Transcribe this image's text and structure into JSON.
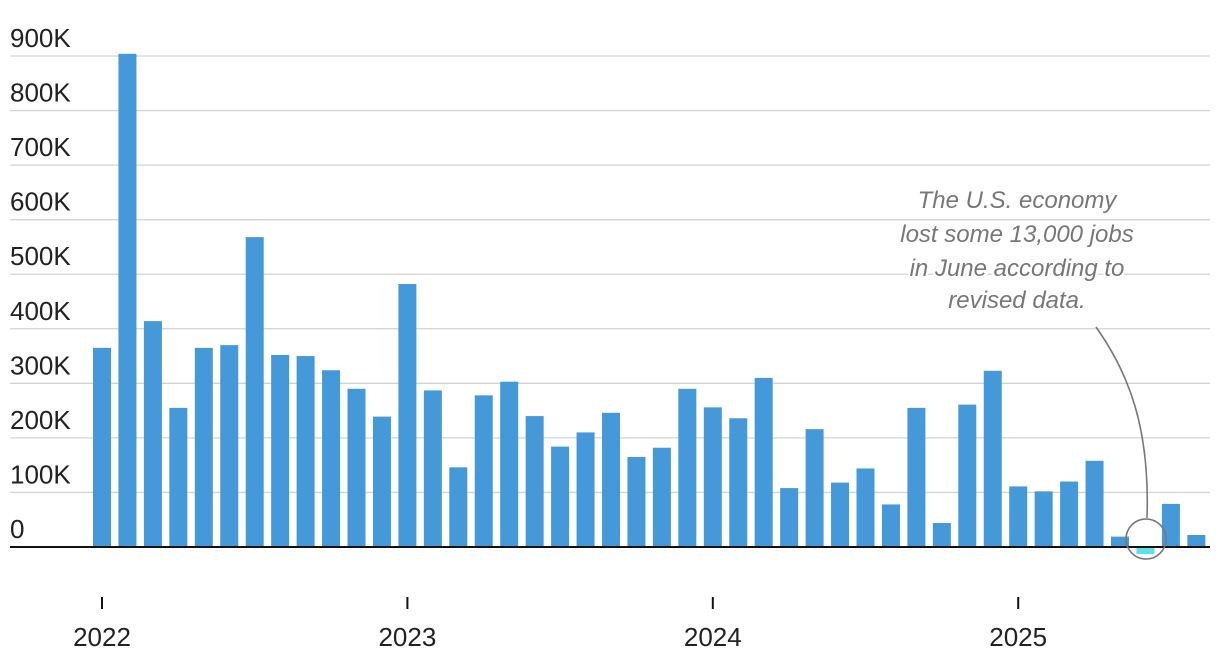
{
  "chart_data": {
    "type": "bar",
    "ylim": [
      -15000,
      900000
    ],
    "yticks": [
      0,
      100000,
      200000,
      300000,
      400000,
      500000,
      600000,
      700000,
      800000,
      900000
    ],
    "ytick_labels": [
      "0",
      "100K",
      "200K",
      "300K",
      "400K",
      "500K",
      "600K",
      "700K",
      "800K",
      "900K"
    ],
    "xtick_labels": [
      "2022",
      "2023",
      "2024",
      "2025"
    ],
    "grid": true,
    "colors": {
      "bar": "#4599d8",
      "highlight": "#5ce1e6",
      "grid": "#d3d3d3",
      "axis": "#111111",
      "annotation": "#777777"
    },
    "annotation": {
      "lines": [
        "The U.S. economy",
        "lost some 13,000 jobs",
        "in June according to",
        "revised data."
      ],
      "points_to": "2025-06"
    },
    "x": [
      "2022-01",
      "2022-02",
      "2022-03",
      "2022-04",
      "2022-05",
      "2022-06",
      "2022-07",
      "2022-08",
      "2022-09",
      "2022-10",
      "2022-11",
      "2022-12",
      "2023-01",
      "2023-02",
      "2023-03",
      "2023-04",
      "2023-05",
      "2023-06",
      "2023-07",
      "2023-08",
      "2023-09",
      "2023-10",
      "2023-11",
      "2023-12",
      "2024-01",
      "2024-02",
      "2024-03",
      "2024-04",
      "2024-05",
      "2024-06",
      "2024-07",
      "2024-08",
      "2024-09",
      "2024-10",
      "2024-11",
      "2024-12",
      "2025-01",
      "2025-02",
      "2025-03",
      "2025-04",
      "2025-05",
      "2025-06",
      "2025-07",
      "2025-08"
    ],
    "values": [
      365000,
      904000,
      414000,
      255000,
      365000,
      370000,
      568000,
      352000,
      350000,
      324000,
      290000,
      239000,
      482000,
      287000,
      146000,
      278000,
      303000,
      240000,
      184000,
      210000,
      246000,
      165000,
      182000,
      290000,
      256000,
      236000,
      310000,
      108000,
      216000,
      118000,
      144000,
      78000,
      255000,
      44000,
      261000,
      323000,
      111000,
      102000,
      120000,
      158000,
      19000,
      -13000,
      79000,
      22000
    ],
    "highlight_index": 41
  }
}
